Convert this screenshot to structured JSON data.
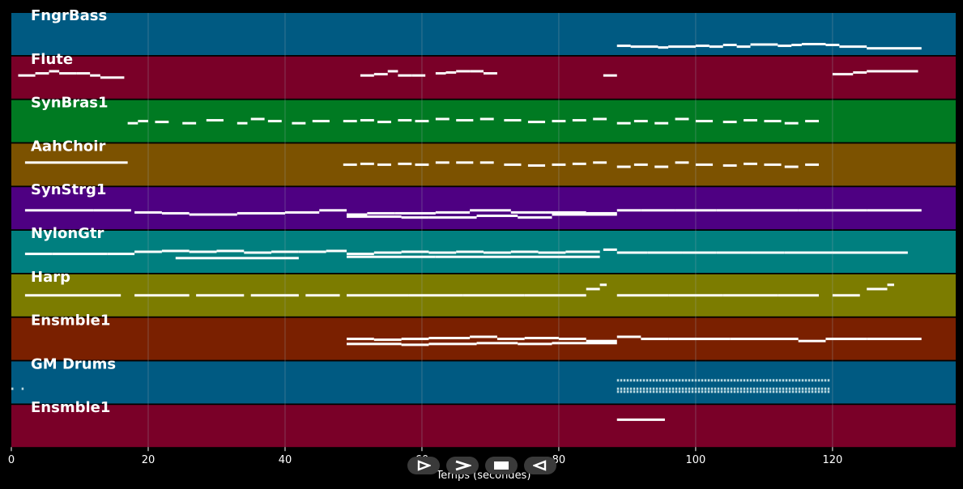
{
  "app": {
    "xlabel": "Temps (secondes)"
  },
  "colors": {
    "background": "#000000",
    "note": "#ffffff",
    "drum_note": "#b8d8e0",
    "gridline": "#9aa6b0"
  },
  "axis": {
    "xmin": 0,
    "xmax": 138,
    "ticks": [
      0,
      20,
      40,
      60,
      80,
      100,
      120
    ],
    "tick_labels": [
      "0",
      "20",
      "40",
      "60",
      "80",
      "100",
      "120"
    ]
  },
  "tracks": [
    {
      "name": "FngrBass",
      "color": "#005a82"
    },
    {
      "name": "Flute",
      "color": "#7a0028"
    },
    {
      "name": "SynBras1",
      "color": "#007a22"
    },
    {
      "name": "AahChoir",
      "color": "#7c5200"
    },
    {
      "name": "SynStrg1",
      "color": "#4e0082"
    },
    {
      "name": "NylonGtr",
      "color": "#007f7f"
    },
    {
      "name": "Harp",
      "color": "#7c7c00"
    },
    {
      "name": "Ensmble1",
      "color": "#7a2000"
    },
    {
      "name": "GM Drums",
      "color": "#005a82"
    },
    {
      "name": "Ensmble1",
      "color": "#7a0028"
    }
  ],
  "transport": [
    {
      "name": "play-icon",
      "label": "play"
    },
    {
      "name": "forward-icon",
      "label": "forward"
    },
    {
      "name": "stop-icon",
      "label": "stop"
    },
    {
      "name": "back-icon",
      "label": "back"
    }
  ],
  "chart_data": {
    "type": "piano-roll",
    "xlabel": "Temps (secondes)",
    "xlim": [
      0,
      138
    ],
    "series": [
      {
        "name": "FngrBass",
        "segments": [
          [
            88.5,
            90.5,
            0.78
          ],
          [
            90.5,
            94.5,
            0.8
          ],
          [
            94.5,
            96,
            0.82
          ],
          [
            96,
            100,
            0.8
          ],
          [
            100,
            102,
            0.78
          ],
          [
            102,
            104,
            0.8
          ],
          [
            104,
            106,
            0.76
          ],
          [
            106,
            108,
            0.8
          ],
          [
            108,
            112,
            0.75
          ],
          [
            112,
            114,
            0.78
          ],
          [
            114,
            115.5,
            0.76
          ],
          [
            115.5,
            119,
            0.74
          ],
          [
            119,
            121,
            0.76
          ],
          [
            121,
            125,
            0.8
          ],
          [
            125,
            133,
            0.84
          ]
        ]
      },
      {
        "name": "Flute",
        "segments": [
          [
            1,
            3.5,
            0.45
          ],
          [
            3.5,
            5.5,
            0.4
          ],
          [
            5.5,
            7,
            0.35
          ],
          [
            7,
            9.5,
            0.4
          ],
          [
            9.5,
            11.5,
            0.4
          ],
          [
            11.5,
            13,
            0.45
          ],
          [
            13,
            16.5,
            0.5
          ],
          [
            51,
            53,
            0.45
          ],
          [
            53,
            55,
            0.42
          ],
          [
            55,
            56.5,
            0.35
          ],
          [
            56.5,
            58.5,
            0.45
          ],
          [
            58.5,
            60.5,
            0.45
          ],
          [
            62,
            63.5,
            0.4
          ],
          [
            63.5,
            65,
            0.38
          ],
          [
            65,
            67,
            0.35
          ],
          [
            67,
            69,
            0.35
          ],
          [
            69,
            71,
            0.4
          ],
          [
            86.5,
            88.5,
            0.45
          ],
          [
            120,
            123,
            0.42
          ],
          [
            123,
            125,
            0.38
          ],
          [
            125,
            132.5,
            0.35
          ]
        ]
      },
      {
        "name": "SynBras1",
        "segments": [
          [
            17,
            18.5,
            0.55
          ],
          [
            18.5,
            20,
            0.5
          ],
          [
            21,
            23,
            0.52
          ],
          [
            25,
            27,
            0.55
          ],
          [
            28.5,
            31,
            0.48
          ],
          [
            33,
            34.5,
            0.55
          ],
          [
            35,
            37,
            0.45
          ],
          [
            37.5,
            39.5,
            0.5
          ],
          [
            41,
            43,
            0.55
          ],
          [
            44,
            46.5,
            0.5
          ],
          [
            48.5,
            50.5,
            0.5
          ],
          [
            51,
            53,
            0.48
          ],
          [
            53.5,
            55.5,
            0.52
          ],
          [
            56.5,
            58.5,
            0.48
          ],
          [
            59,
            61,
            0.5
          ],
          [
            62,
            64,
            0.45
          ],
          [
            65,
            67.5,
            0.48
          ],
          [
            68.5,
            70.5,
            0.45
          ],
          [
            72,
            74.5,
            0.48
          ],
          [
            75.5,
            78,
            0.52
          ],
          [
            79,
            81,
            0.5
          ],
          [
            82,
            84,
            0.48
          ],
          [
            85,
            87,
            0.45
          ],
          [
            88.5,
            90.5,
            0.55
          ],
          [
            91,
            93,
            0.5
          ],
          [
            94,
            96,
            0.55
          ],
          [
            97,
            99,
            0.45
          ],
          [
            100,
            102.5,
            0.5
          ],
          [
            104,
            106,
            0.52
          ],
          [
            107,
            109,
            0.48
          ],
          [
            110,
            112.5,
            0.5
          ],
          [
            113,
            115,
            0.55
          ],
          [
            116,
            118,
            0.5
          ]
        ]
      },
      {
        "name": "AahChoir",
        "segments": [
          [
            2,
            17,
            0.45
          ],
          [
            48.5,
            50.5,
            0.5
          ],
          [
            51,
            53,
            0.48
          ],
          [
            53.5,
            55.5,
            0.5
          ],
          [
            56.5,
            58.5,
            0.48
          ],
          [
            59,
            61,
            0.5
          ],
          [
            62,
            64,
            0.45
          ],
          [
            65,
            67.5,
            0.45
          ],
          [
            68.5,
            70.5,
            0.45
          ],
          [
            72,
            74.5,
            0.5
          ],
          [
            75.5,
            78,
            0.52
          ],
          [
            79,
            81,
            0.5
          ],
          [
            82,
            84,
            0.48
          ],
          [
            85,
            87,
            0.45
          ],
          [
            88.5,
            90.5,
            0.55
          ],
          [
            91,
            93,
            0.5
          ],
          [
            94,
            96,
            0.55
          ],
          [
            97,
            99,
            0.45
          ],
          [
            100,
            102.5,
            0.5
          ],
          [
            104,
            106,
            0.52
          ],
          [
            107,
            109,
            0.48
          ],
          [
            110,
            112.5,
            0.5
          ],
          [
            113,
            115,
            0.55
          ],
          [
            116,
            118,
            0.5
          ]
        ]
      },
      {
        "name": "SynStrg1",
        "segments": [
          [
            2,
            12,
            0.55
          ],
          [
            12,
            17.5,
            0.55
          ],
          [
            18,
            22,
            0.6
          ],
          [
            22,
            26,
            0.62
          ],
          [
            26,
            33,
            0.65
          ],
          [
            33,
            40,
            0.62
          ],
          [
            40,
            45,
            0.6
          ],
          [
            45,
            49,
            0.55
          ],
          [
            49,
            52,
            0.65
          ],
          [
            52,
            56,
            0.62
          ],
          [
            56,
            62,
            0.62
          ],
          [
            62,
            67,
            0.6
          ],
          [
            67,
            73,
            0.55
          ],
          [
            73,
            78,
            0.6
          ],
          [
            78,
            84,
            0.6
          ],
          [
            84,
            88.5,
            0.62
          ],
          [
            88.5,
            92,
            0.55
          ],
          [
            92,
            97,
            0.55
          ],
          [
            97,
            103,
            0.55
          ],
          [
            103,
            108,
            0.55
          ],
          [
            108,
            115,
            0.55
          ],
          [
            115,
            119,
            0.55
          ],
          [
            119,
            125,
            0.55
          ],
          [
            125,
            133,
            0.55
          ],
          [
            49,
            57,
            0.7
          ],
          [
            57,
            61,
            0.72
          ],
          [
            61,
            68,
            0.72
          ],
          [
            68,
            74,
            0.68
          ],
          [
            74,
            79,
            0.72
          ],
          [
            79,
            88.5,
            0.65
          ]
        ]
      },
      {
        "name": "NylonGtr",
        "segments": [
          [
            2,
            6,
            0.55
          ],
          [
            6,
            10,
            0.55
          ],
          [
            10,
            14,
            0.55
          ],
          [
            14,
            18,
            0.55
          ],
          [
            18,
            22,
            0.5
          ],
          [
            22,
            26,
            0.48
          ],
          [
            26,
            30,
            0.5
          ],
          [
            30,
            34,
            0.48
          ],
          [
            34,
            38,
            0.52
          ],
          [
            38,
            42,
            0.5
          ],
          [
            42,
            46,
            0.5
          ],
          [
            46,
            49,
            0.48
          ],
          [
            49,
            53,
            0.55
          ],
          [
            53,
            57,
            0.52
          ],
          [
            57,
            61,
            0.5
          ],
          [
            61,
            65,
            0.52
          ],
          [
            65,
            69,
            0.5
          ],
          [
            69,
            73,
            0.52
          ],
          [
            73,
            77,
            0.5
          ],
          [
            77,
            81,
            0.52
          ],
          [
            81,
            86,
            0.5
          ],
          [
            86.5,
            88.5,
            0.45
          ],
          [
            88.5,
            93,
            0.52
          ],
          [
            93,
            98,
            0.52
          ],
          [
            98,
            103,
            0.52
          ],
          [
            103,
            108,
            0.52
          ],
          [
            108,
            113,
            0.52
          ],
          [
            113,
            120,
            0.52
          ],
          [
            120,
            131,
            0.52
          ],
          [
            24,
            42,
            0.65
          ],
          [
            49,
            62,
            0.62
          ],
          [
            62,
            86,
            0.62
          ]
        ]
      },
      {
        "name": "Harp",
        "segments": [
          [
            2,
            10,
            0.5
          ],
          [
            10,
            16,
            0.5
          ],
          [
            18,
            26,
            0.5
          ],
          [
            27,
            34,
            0.5
          ],
          [
            35,
            42,
            0.5
          ],
          [
            43,
            48,
            0.5
          ],
          [
            49,
            58,
            0.5
          ],
          [
            58,
            66,
            0.5
          ],
          [
            66,
            75,
            0.5
          ],
          [
            75,
            84,
            0.5
          ],
          [
            84,
            86,
            0.35
          ],
          [
            86,
            87,
            0.25
          ],
          [
            88.5,
            96,
            0.5
          ],
          [
            96,
            104,
            0.5
          ],
          [
            104,
            112,
            0.5
          ],
          [
            112,
            118,
            0.5
          ],
          [
            120,
            124,
            0.5
          ],
          [
            125,
            128,
            0.35
          ],
          [
            128,
            129,
            0.25
          ]
        ]
      },
      {
        "name": "Ensmble1",
        "segments": [
          [
            49,
            53,
            0.5
          ],
          [
            53,
            57,
            0.52
          ],
          [
            57,
            61,
            0.5
          ],
          [
            61,
            67,
            0.48
          ],
          [
            67,
            71,
            0.45
          ],
          [
            71,
            75,
            0.5
          ],
          [
            75,
            80,
            0.48
          ],
          [
            80,
            84,
            0.5
          ],
          [
            84,
            88.5,
            0.55
          ],
          [
            88.5,
            92,
            0.45
          ],
          [
            92,
            96,
            0.5
          ],
          [
            96,
            105,
            0.5
          ],
          [
            105,
            115,
            0.5
          ],
          [
            115,
            119,
            0.55
          ],
          [
            119,
            125,
            0.5
          ],
          [
            125,
            133,
            0.5
          ],
          [
            49,
            57,
            0.62
          ],
          [
            57,
            61,
            0.64
          ],
          [
            61,
            68,
            0.62
          ],
          [
            68,
            74,
            0.6
          ],
          [
            74,
            79,
            0.62
          ],
          [
            79,
            88.5,
            0.6
          ]
        ]
      },
      {
        "name": "GM Drums",
        "segments": [
          [
            0,
            0.3,
            0.65
          ],
          [
            1.5,
            1.8,
            0.65
          ],
          [
            88.5,
            119.5,
            0.45
          ],
          [
            88.5,
            119.5,
            0.65
          ],
          [
            88.5,
            119.5,
            0.72
          ]
        ]
      },
      {
        "name": "Ensmble1",
        "segments": [
          [
            88.5,
            95.5,
            0.35
          ]
        ]
      }
    ]
  }
}
